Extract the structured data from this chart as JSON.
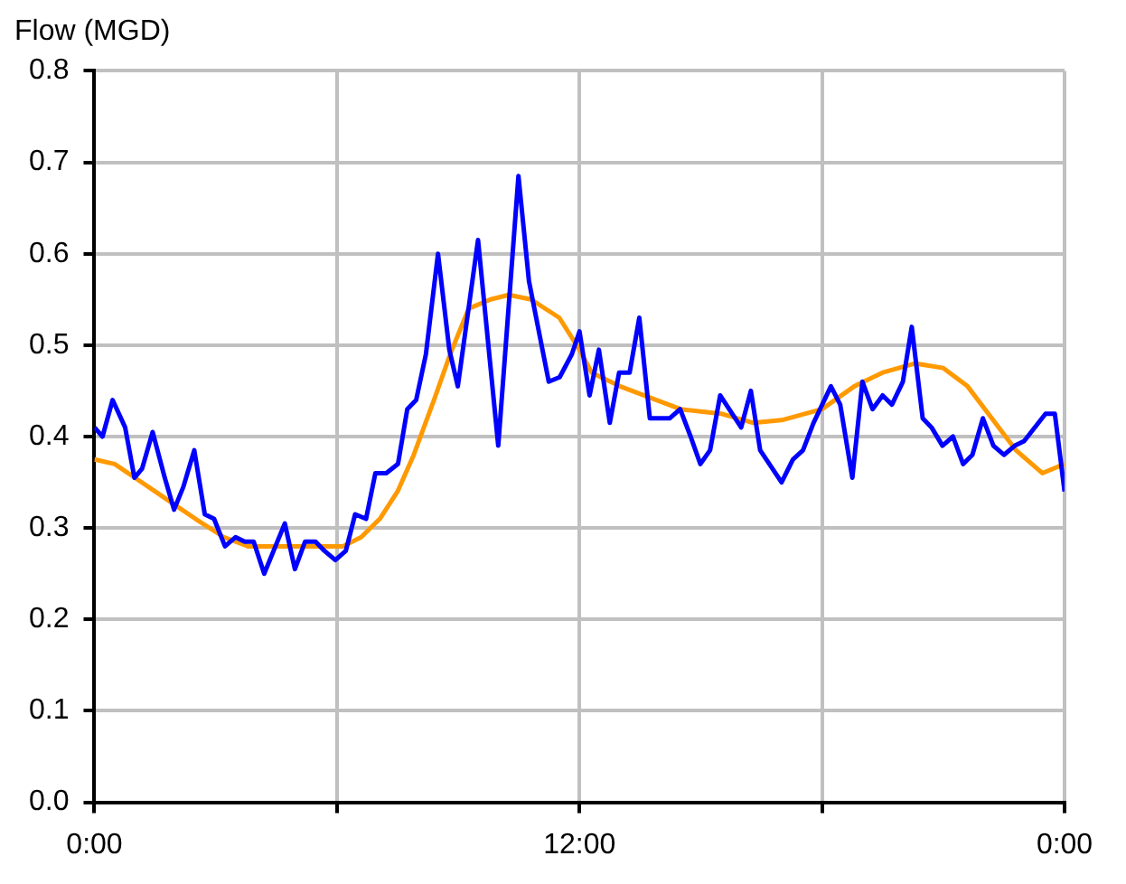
{
  "chart_data": {
    "type": "line",
    "ylabel": "Flow (MGD)",
    "xlim": [
      0,
      24
    ],
    "xticks": [
      {
        "value": 0,
        "label": "0:00"
      },
      {
        "value": 6,
        "label": null
      },
      {
        "value": 12,
        "label": "12:00"
      },
      {
        "value": 18,
        "label": null
      },
      {
        "value": 24,
        "label": "0:00"
      }
    ],
    "ylim": [
      0,
      0.8
    ],
    "yticks": [
      {
        "value": 0,
        "label": "0.0"
      },
      0.1,
      0.2,
      0.3,
      0.4,
      0.5,
      0.6,
      0.7,
      0.8
    ],
    "grid": true,
    "legend": false,
    "marker": "none",
    "line_style": "solid",
    "series": [
      {
        "color": "#0000ff",
        "x": [
          0,
          0.2,
          0.45,
          0.76,
          0.99,
          1.18,
          1.44,
          1.74,
          1.97,
          2.2,
          2.47,
          2.73,
          2.96,
          3.23,
          3.49,
          3.72,
          3.94,
          4.2,
          4.71,
          4.96,
          5.21,
          5.47,
          5.69,
          5.96,
          6.22,
          6.45,
          6.72,
          6.95,
          7.22,
          7.51,
          7.74,
          7.96,
          8.2,
          8.5,
          8.78,
          8.99,
          9.49,
          9.99,
          10.49,
          10.75,
          11.24,
          11.51,
          11.81,
          12,
          12.25,
          12.48,
          12.75,
          12.98,
          13.24,
          13.48,
          13.74,
          14.23,
          14.49,
          14.75,
          14.99,
          15.23,
          15.48,
          16.0,
          16.24,
          16.47,
          17.0,
          17.28,
          17.53,
          17.79,
          18.22,
          18.45,
          18.75,
          19.0,
          19.25,
          19.5,
          19.73,
          20.0,
          20.22,
          20.49,
          20.71,
          20.98,
          21.24,
          21.49,
          21.72,
          21.98,
          22.24,
          22.5,
          22.77,
          23.0,
          23.53,
          23.76,
          24
        ],
        "values": [
          0.41,
          0.4,
          0.44,
          0.41,
          0.355,
          0.365,
          0.405,
          0.355,
          0.32,
          0.345,
          0.385,
          0.315,
          0.31,
          0.28,
          0.29,
          0.285,
          0.285,
          0.25,
          0.305,
          0.255,
          0.285,
          0.285,
          0.275,
          0.265,
          0.275,
          0.315,
          0.31,
          0.36,
          0.36,
          0.37,
          0.43,
          0.44,
          0.49,
          0.6,
          0.495,
          0.455,
          0.615,
          0.39,
          0.685,
          0.57,
          0.46,
          0.465,
          0.49,
          0.515,
          0.445,
          0.495,
          0.415,
          0.47,
          0.47,
          0.53,
          0.42,
          0.42,
          0.43,
          0.4,
          0.37,
          0.385,
          0.445,
          0.41,
          0.45,
          0.385,
          0.35,
          0.375,
          0.385,
          0.415,
          0.455,
          0.435,
          0.355,
          0.46,
          0.43,
          0.445,
          0.435,
          0.46,
          0.52,
          0.42,
          0.41,
          0.39,
          0.4,
          0.37,
          0.38,
          0.42,
          0.39,
          0.38,
          0.39,
          0.395,
          0.425,
          0.425,
          0.34
        ]
      },
      {
        "color": "#ff9900",
        "x": [
          0,
          0.5,
          1,
          1.5,
          2,
          2.5,
          3.2,
          3.8,
          4.3,
          5,
          6.15,
          6.6,
          7.06,
          7.5,
          7.9,
          8.4,
          8.8,
          9.26,
          9.8,
          10.25,
          10.8,
          11.5,
          12,
          12.3,
          13,
          14.5,
          15.5,
          16.3,
          17,
          18,
          18.8,
          19.5,
          20.3,
          21,
          21.6,
          22.2,
          22.8,
          23.45,
          24
        ],
        "values": [
          0.375,
          0.37,
          0.355,
          0.34,
          0.325,
          0.31,
          0.29,
          0.28,
          0.28,
          0.28,
          0.28,
          0.29,
          0.31,
          0.34,
          0.38,
          0.44,
          0.49,
          0.54,
          0.55,
          0.555,
          0.55,
          0.53,
          0.495,
          0.47,
          0.455,
          0.43,
          0.425,
          0.415,
          0.418,
          0.43,
          0.455,
          0.47,
          0.48,
          0.475,
          0.455,
          0.42,
          0.385,
          0.36,
          0.37
        ]
      }
    ]
  }
}
